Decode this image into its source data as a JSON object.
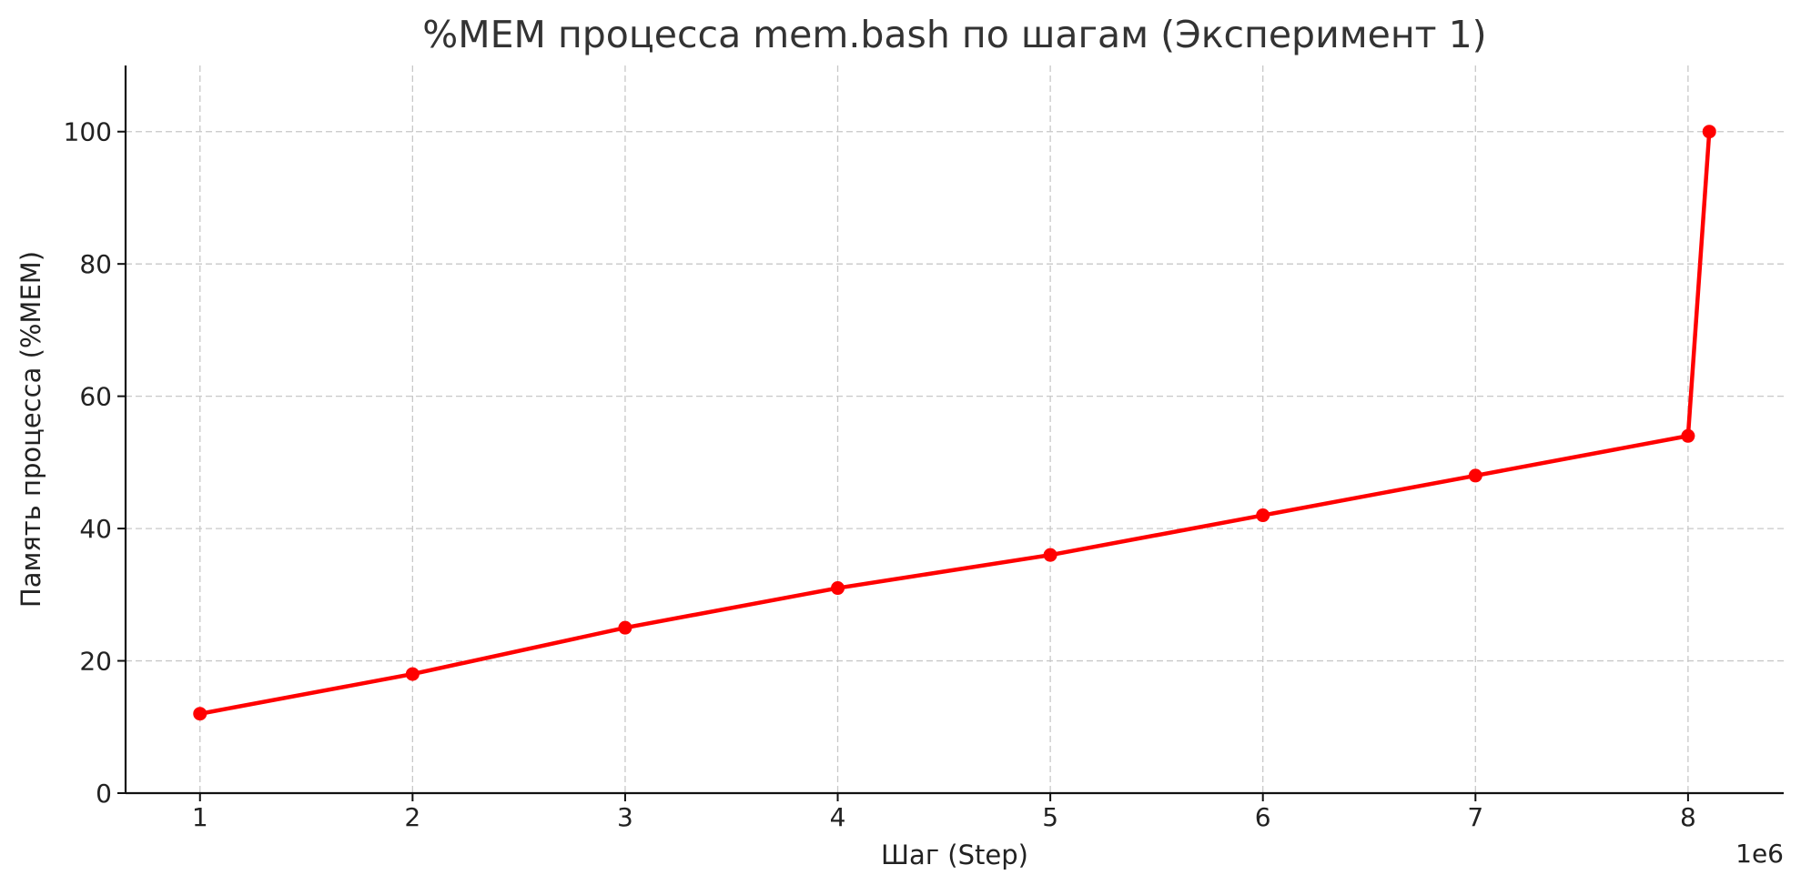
{
  "chart_data": {
    "type": "line",
    "title": "%MEM процесса mem.bash по шагам (Эксперимент 1)",
    "xlabel": "Шаг (Step)",
    "ylabel": "Память процесса (%MEM)",
    "x_offset_label": "1e6",
    "x_scale_factor": 1000000,
    "xlim": [
      650000,
      8450000
    ],
    "ylim": [
      0,
      110
    ],
    "x_ticks": [
      1000000,
      2000000,
      3000000,
      4000000,
      5000000,
      6000000,
      7000000,
      8000000
    ],
    "x_tick_labels": [
      "1",
      "2",
      "3",
      "4",
      "5",
      "6",
      "7",
      "8"
    ],
    "y_ticks": [
      0,
      20,
      40,
      60,
      80,
      100
    ],
    "y_tick_labels": [
      "0",
      "20",
      "40",
      "60",
      "80",
      "100"
    ],
    "grid": true,
    "series": [
      {
        "color": "#ff0000",
        "x": [
          1000000,
          2000000,
          3000000,
          4000000,
          5000000,
          6000000,
          7000000,
          8000000,
          8100000
        ],
        "y": [
          12,
          18,
          25,
          31,
          36,
          42,
          48,
          54,
          100
        ]
      }
    ]
  }
}
